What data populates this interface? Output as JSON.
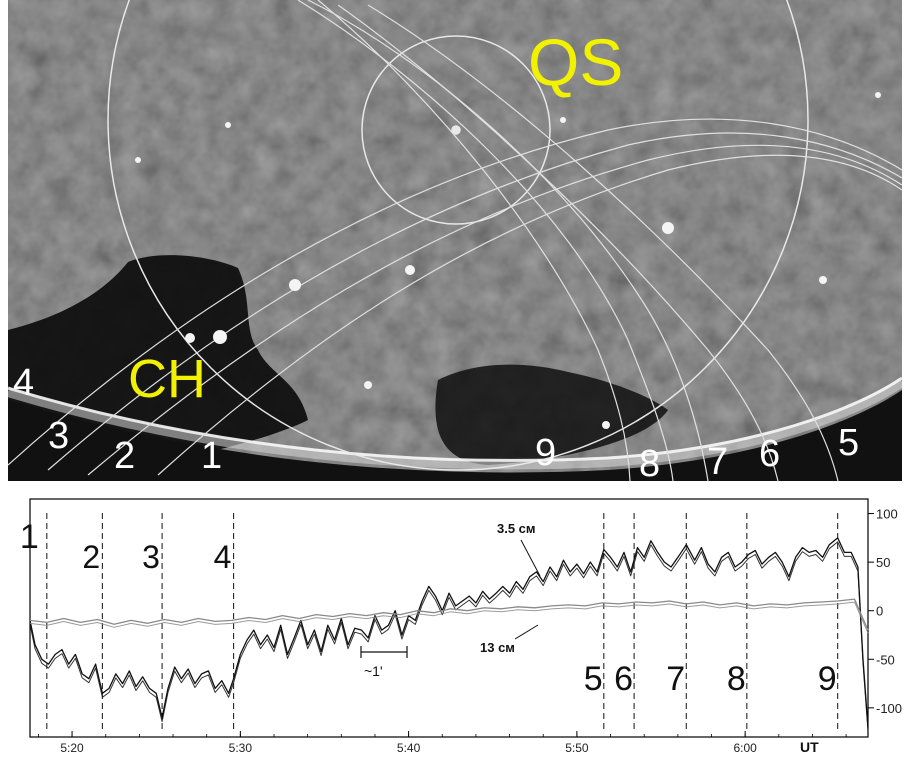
{
  "image": {
    "label_qs": "QS",
    "label_ch": "CH",
    "colors": {
      "background": "#454545",
      "coronal_hole": "#0c0c0c",
      "limb": "#e6e6e6",
      "contours": "#e8e8e8",
      "labels": "#f2f200"
    },
    "scan_numbers": [
      "1",
      "2",
      "3",
      "4",
      "5",
      "6",
      "7",
      "8",
      "9"
    ]
  },
  "chart_data": {
    "type": "line",
    "x_unit_label": "UT",
    "x_ticks": [
      "5:20",
      "5:30",
      "5:40",
      "5:50",
      "6:00"
    ],
    "x_range_min": [
      17.5,
      45.5
    ],
    "y_ticks": [
      "100",
      "50",
      "0",
      "-50",
      "-100"
    ],
    "ylim": [
      -130,
      115
    ],
    "series_labels": {
      "s35": "3.5 см",
      "s13": "13 см"
    },
    "scale_bar_label": "~1'",
    "scan_markers": [
      {
        "label": "1",
        "x_min": 18.5
      },
      {
        "label": "2",
        "x_min": 21.8
      },
      {
        "label": "3",
        "x_min": 25.35
      },
      {
        "label": "4",
        "x_min": 29.6
      },
      {
        "label": "5",
        "x_min": 51.6
      },
      {
        "label": "6",
        "x_min": 53.4
      },
      {
        "label": "7",
        "x_min": 56.5
      },
      {
        "label": "8",
        "x_min": 60.1
      },
      {
        "label": "9",
        "x_min": 65.5
      }
    ],
    "series": [
      {
        "name": "3.5 см",
        "color": "#111111",
        "x": [
          17.5,
          17.8,
          18.2,
          18.6,
          19.0,
          19.4,
          19.8,
          20.2,
          20.6,
          21.0,
          21.4,
          21.8,
          22.2,
          22.6,
          23.0,
          23.4,
          23.8,
          24.2,
          24.6,
          25.0,
          25.35,
          25.7,
          26.1,
          26.5,
          26.9,
          27.3,
          27.7,
          28.1,
          28.5,
          28.9,
          29.3,
          29.6,
          30.0,
          30.4,
          30.8,
          31.2,
          31.6,
          32.0,
          32.4,
          32.8,
          33.2,
          33.6,
          34.0,
          34.4,
          34.8,
          35.2,
          35.6,
          36.0,
          36.4,
          36.8,
          37.2,
          37.6,
          38.0,
          38.4,
          38.8,
          39.2,
          39.6,
          40.0,
          40.4,
          40.8,
          41.2,
          41.6,
          42.0,
          42.4,
          42.8,
          43.2,
          43.6,
          44.0,
          44.4,
          44.8,
          45.2,
          45.6,
          46.0,
          46.4,
          46.8,
          47.2,
          47.6,
          48.0,
          48.4,
          48.8,
          49.2,
          49.6,
          50.0,
          50.4,
          50.8,
          51.2,
          51.6,
          52.0,
          52.4,
          52.8,
          53.2,
          53.6,
          54.0,
          54.4,
          54.8,
          55.2,
          55.6,
          56.0,
          56.5,
          57.0,
          57.4,
          57.8,
          58.2,
          58.6,
          59.0,
          59.4,
          59.8,
          60.2,
          60.6,
          61.0,
          61.4,
          61.8,
          62.2,
          62.6,
          63.0,
          63.4,
          63.8,
          64.2,
          64.6,
          65.0,
          65.5,
          65.9,
          66.3,
          66.7,
          67.0,
          67.3
        ],
        "values": [
          -10,
          -35,
          -50,
          -55,
          -45,
          -40,
          -55,
          -45,
          -65,
          -70,
          -55,
          -85,
          -80,
          -65,
          -75,
          -62,
          -78,
          -68,
          -80,
          -85,
          -110,
          -80,
          -58,
          -70,
          -60,
          -75,
          -65,
          -62,
          -80,
          -72,
          -85,
          -70,
          -45,
          -30,
          -20,
          -35,
          -25,
          -38,
          -15,
          -45,
          -28,
          -10,
          -35,
          -20,
          -42,
          -15,
          -30,
          -8,
          -35,
          -18,
          -20,
          -28,
          -5,
          -20,
          -15,
          0,
          -25,
          -5,
          -10,
          10,
          25,
          15,
          0,
          18,
          5,
          10,
          15,
          8,
          20,
          12,
          18,
          25,
          18,
          30,
          22,
          35,
          40,
          30,
          45,
          35,
          52,
          40,
          48,
          38,
          50,
          40,
          63,
          55,
          45,
          60,
          40,
          65,
          55,
          72,
          60,
          50,
          45,
          55,
          68,
          52,
          65,
          48,
          40,
          55,
          60,
          45,
          50,
          58,
          62,
          48,
          55,
          60,
          50,
          35,
          55,
          65,
          60,
          62,
          55,
          68,
          75,
          60,
          60,
          45,
          -50,
          -120
        ]
      },
      {
        "name": "13 см",
        "color": "#8a8a8a",
        "x": [
          17.5,
          18.5,
          19.5,
          20.5,
          21.5,
          22.5,
          23.5,
          24.5,
          25.5,
          26.5,
          27.5,
          28.5,
          29.5,
          30.5,
          31.5,
          32.5,
          33.5,
          34.5,
          35.5,
          36.5,
          37.5,
          38.5,
          39.5,
          40.5,
          41.5,
          42.5,
          43.5,
          44.5,
          45.5,
          46.5,
          47.5,
          48.5,
          49.5,
          50.5,
          51.5,
          52.5,
          53.5,
          54.5,
          55.5,
          56.5,
          57.5,
          58.5,
          59.5,
          60.5,
          61.5,
          62.5,
          63.5,
          64.5,
          65.5,
          66.5,
          67.3
        ],
        "values": [
          -10,
          -12,
          -8,
          -12,
          -9,
          -14,
          -10,
          -13,
          -9,
          -12,
          -8,
          -11,
          -10,
          -7,
          -9,
          -5,
          -8,
          -4,
          -6,
          -3,
          -5,
          -2,
          -4,
          0,
          -2,
          2,
          0,
          3,
          2,
          4,
          3,
          5,
          6,
          5,
          8,
          7,
          9,
          8,
          10,
          7,
          9,
          6,
          8,
          5,
          7,
          6,
          8,
          9,
          10,
          12,
          -20
        ]
      }
    ]
  }
}
